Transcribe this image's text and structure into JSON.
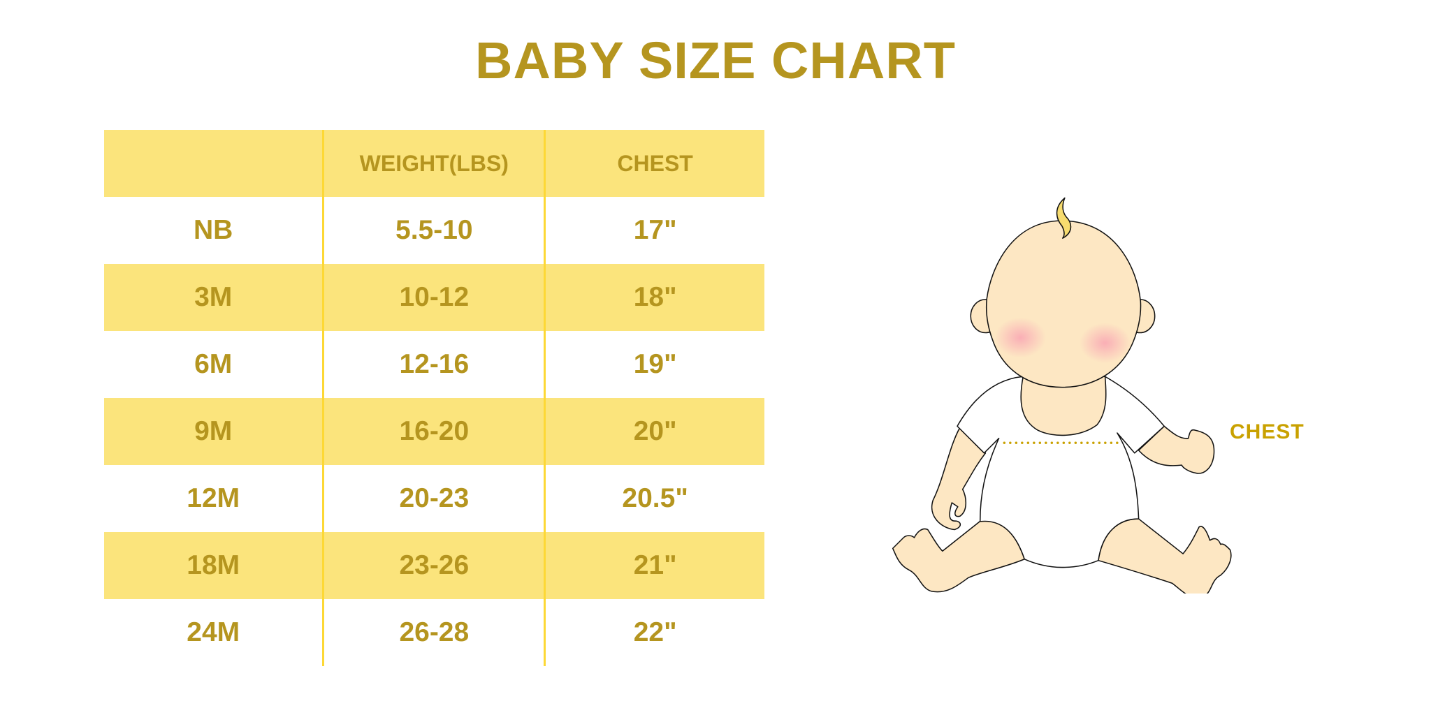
{
  "title": "BABY SIZE CHART",
  "chart_data": {
    "type": "table",
    "title": "BABY SIZE CHART",
    "columns": [
      "",
      "WEIGHT(LBS)",
      "CHEST"
    ],
    "rows": [
      [
        "NB",
        "5.5-10",
        "17\""
      ],
      [
        "3M",
        "10-12",
        "18\""
      ],
      [
        "6M",
        "12-16",
        "19\""
      ],
      [
        "9M",
        "16-20",
        "20\""
      ],
      [
        "12M",
        "20-23",
        "20.5\""
      ],
      [
        "18M",
        "23-26",
        "21\""
      ],
      [
        "24M",
        "26-28",
        "22\""
      ]
    ]
  },
  "illustration": {
    "chest_label": "CHEST"
  },
  "colors": {
    "text": "#b5951f",
    "row_fill": "#fbe47c",
    "divider": "#fdd835",
    "measure": "#c9a100"
  }
}
